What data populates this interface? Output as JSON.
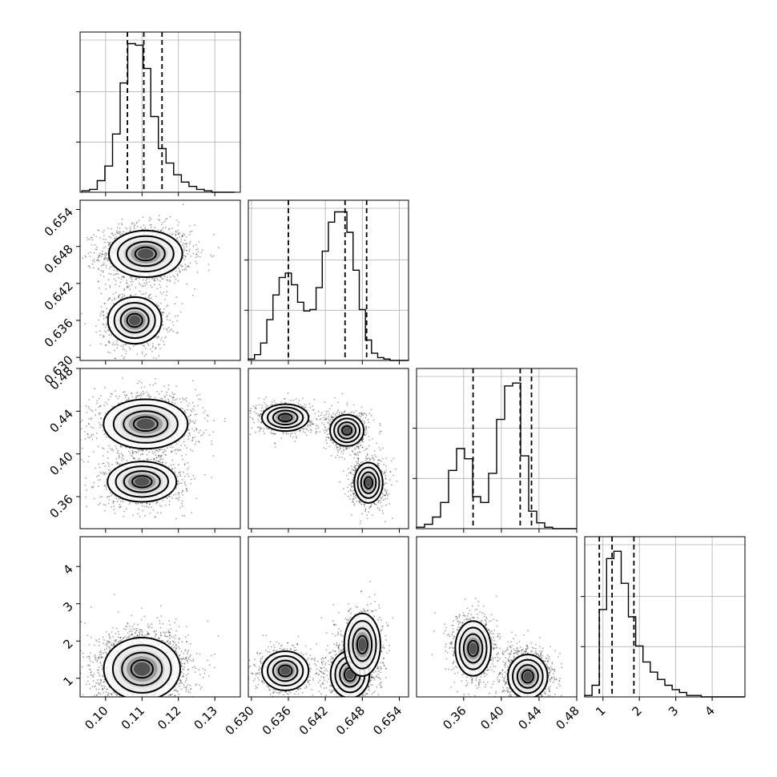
{
  "chart_data": {
    "type": "corner",
    "parameters": [
      {
        "ticks": [
          0.1,
          0.11,
          0.12,
          0.13
        ],
        "tick_labels": [
          "0.10",
          "0.11",
          "0.12",
          "0.13"
        ],
        "range": [
          0.093,
          0.137
        ],
        "quantiles": [
          0.106,
          0.1105,
          0.1155
        ],
        "hist_edges_start": 0.0935,
        "hist_bin_width": 0.0021,
        "hist_counts": [
          1,
          2,
          8,
          18,
          40,
          75,
          102,
          101,
          85,
          52,
          30,
          20,
          12,
          7,
          4,
          2,
          1,
          0,
          0,
          0
        ],
        "hist_ylim": [
          0,
          110
        ],
        "modes": [
          {
            "mean": 0.1105,
            "sd": 0.0045
          }
        ]
      },
      {
        "ticks": [
          0.63,
          0.636,
          0.642,
          0.648,
          0.654
        ],
        "tick_labels": [
          "0.630",
          "0.636",
          "0.642",
          "0.648",
          "0.654"
        ],
        "range": [
          0.6295,
          0.6555
        ],
        "quantiles": [
          0.636,
          0.6452,
          0.6487
        ],
        "hist_edges_start": 0.6295,
        "hist_bin_width": 0.001,
        "hist_counts": [
          1,
          4,
          12,
          28,
          45,
          57,
          60,
          52,
          40,
          34,
          35,
          50,
          75,
          95,
          102,
          102,
          88,
          62,
          35,
          14,
          5,
          2,
          1,
          0,
          0,
          0
        ],
        "hist_ylim": [
          0,
          110
        ],
        "modes": [
          {
            "mean": 0.636,
            "sd": 0.0025
          },
          {
            "mean": 0.647,
            "sd": 0.0022
          }
        ]
      },
      {
        "ticks": [
          0.36,
          0.4,
          0.44,
          0.48
        ],
        "tick_labels": [
          "0.36",
          "0.40",
          "0.44",
          "0.48"
        ],
        "range": [
          0.31,
          0.48
        ],
        "quantiles": [
          0.37,
          0.42,
          0.432
        ],
        "hist_edges_start": 0.31,
        "hist_bin_width": 0.0085,
        "hist_counts": [
          1,
          3,
          8,
          18,
          40,
          55,
          48,
          22,
          18,
          38,
          75,
          98,
          100,
          50,
          12,
          4,
          1,
          0,
          0,
          0
        ],
        "hist_ylim": [
          0,
          110
        ],
        "modes": [
          {
            "mean": 0.373,
            "sd": 0.012
          },
          {
            "mean": 0.428,
            "sd": 0.012
          }
        ]
      },
      {
        "ticks": [
          1,
          2,
          3,
          4
        ],
        "tick_labels": [
          "1",
          "2",
          "3",
          "4"
        ],
        "range": [
          0.5,
          4.9
        ],
        "quantiles": [
          0.9,
          1.25,
          1.85
        ],
        "hist_edges_start": 0.5,
        "hist_bin_width": 0.2,
        "hist_counts": [
          1,
          8,
          60,
          95,
          100,
          78,
          55,
          35,
          24,
          17,
          12,
          8,
          5,
          3,
          1,
          1,
          0,
          0,
          0,
          0,
          0,
          0
        ],
        "hist_ylim": [
          0,
          110
        ],
        "modes": [
          {
            "mean": 1.2,
            "sd": 0.35
          }
        ]
      }
    ],
    "pairs": [
      {
        "row": 1,
        "col": 0,
        "blobs": [
          {
            "cx": 0.111,
            "cy": 0.6468,
            "sx": 0.0048,
            "sy": 0.0018,
            "w": 1.0
          },
          {
            "cx": 0.108,
            "cy": 0.636,
            "sx": 0.0035,
            "sy": 0.0018,
            "w": 0.55
          }
        ]
      },
      {
        "row": 2,
        "col": 0,
        "blobs": [
          {
            "cx": 0.111,
            "cy": 0.428,
            "sx": 0.0055,
            "sy": 0.011,
            "w": 1.0
          },
          {
            "cx": 0.11,
            "cy": 0.374,
            "sx": 0.0045,
            "sy": 0.009,
            "w": 0.75
          }
        ]
      },
      {
        "row": 2,
        "col": 1,
        "blobs": [
          {
            "cx": 0.6355,
            "cy": 0.434,
            "sx": 0.0018,
            "sy": 0.006,
            "w": 0.7
          },
          {
            "cx": 0.6455,
            "cy": 0.422,
            "sx": 0.0013,
            "sy": 0.007,
            "w": 0.9
          },
          {
            "cx": 0.649,
            "cy": 0.373,
            "sx": 0.0011,
            "sy": 0.009,
            "w": 0.85
          }
        ]
      },
      {
        "row": 3,
        "col": 0,
        "blobs": [
          {
            "cx": 0.11,
            "cy": 1.25,
            "sx": 0.005,
            "sy": 0.4,
            "w": 1.0
          }
        ]
      },
      {
        "row": 3,
        "col": 1,
        "blobs": [
          {
            "cx": 0.6355,
            "cy": 1.2,
            "sx": 0.0018,
            "sy": 0.25,
            "w": 0.6
          },
          {
            "cx": 0.646,
            "cy": 1.1,
            "sx": 0.0015,
            "sy": 0.3,
            "w": 0.8
          },
          {
            "cx": 0.648,
            "cy": 1.9,
            "sx": 0.0014,
            "sy": 0.4,
            "w": 0.55
          }
        ]
      },
      {
        "row": 3,
        "col": 2,
        "blobs": [
          {
            "cx": 0.37,
            "cy": 1.8,
            "sx": 0.009,
            "sy": 0.35,
            "w": 0.7
          },
          {
            "cx": 0.428,
            "cy": 1.05,
            "sx": 0.01,
            "sy": 0.28,
            "w": 0.9
          }
        ]
      }
    ],
    "pair_ylims": {
      "1": [
        0.6295,
        0.6555
      ],
      "2": [
        0.33,
        0.48
      ],
      "3": [
        0.5,
        4.8
      ]
    },
    "ytick_rows": {
      "1": {
        "ticks": [
          0.63,
          0.636,
          0.642,
          0.648,
          0.654
        ],
        "labels": [
          "0.630",
          "0.636",
          "0.642",
          "0.648",
          "0.654"
        ]
      },
      "2": {
        "ticks": [
          0.36,
          0.4,
          0.44,
          0.48
        ],
        "labels": [
          "0.36",
          "0.40",
          "0.44",
          "0.48"
        ]
      },
      "3": {
        "ticks": [
          1,
          2,
          3,
          4
        ],
        "labels": [
          "1",
          "2",
          "3",
          "4"
        ]
      }
    },
    "x4_ticks": {
      "ticks": [
        0.36,
        0.4,
        0.44,
        0.48
      ],
      "labels": [
        "0.36",
        "0.40",
        "0.44",
        "0.48"
      ],
      "range": [
        0.31,
        0.48
      ]
    },
    "grid": true,
    "colors": {
      "line": "#000000",
      "grid": "#b0b0b0",
      "density_dark": "#000000",
      "background": "#ffffff"
    }
  }
}
